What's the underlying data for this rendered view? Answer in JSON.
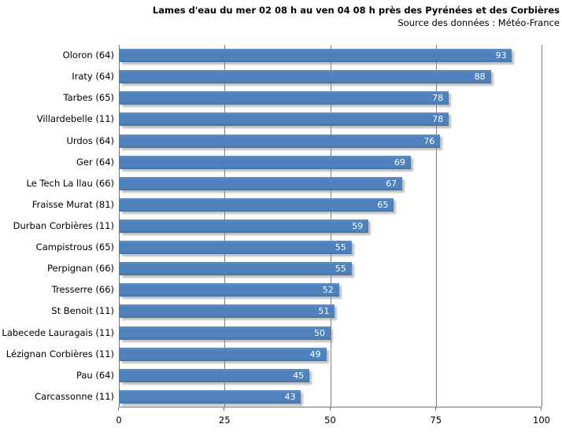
{
  "header": {
    "title": "Lames d'eau du mer 02 08 h au ven 04 08 h près des Pyrénées et des Corbières",
    "subtitle": "Source des données : Météo-France"
  },
  "colors": {
    "bar_fill": "#4f81bd",
    "bar_shadow": "#8c8c8c",
    "gridline": "#808080",
    "axis_line": "#737373",
    "value_label_text": "#ffffff",
    "text": "#000000",
    "background": "#ffffff"
  },
  "chart_data": {
    "type": "bar",
    "orientation": "horizontal",
    "title": "Lames d'eau du mer 02 08 h au ven 04 08 h près des Pyrénées et des Corbières",
    "subtitle": "Source des données : Météo-France",
    "categories": [
      "Oloron (64)",
      "Iraty (64)",
      "Tarbes (65)",
      "Villardebelle (11)",
      "Urdos (64)",
      "Ger (64)",
      "Le Tech La llau (66)",
      "Fraisse Murat (81)",
      "Durban Corbières (11)",
      "Campistrous (65)",
      "Perpignan (66)",
      "Tresserre (66)",
      "St Benoit (11)",
      "Labecede Lauragais (11)",
      "Lézignan Corbières (11)",
      "Pau (64)",
      "Carcassonne (11)"
    ],
    "values": [
      93,
      88,
      78,
      78,
      76,
      69,
      67,
      65,
      59,
      55,
      55,
      52,
      51,
      50,
      49,
      45,
      43
    ],
    "xlabel": "",
    "ylabel": "",
    "xlim": [
      0,
      100
    ],
    "x_ticks": [
      0,
      25,
      50,
      75,
      100
    ],
    "grid": true,
    "legend": false,
    "value_labels": "inside-end"
  }
}
